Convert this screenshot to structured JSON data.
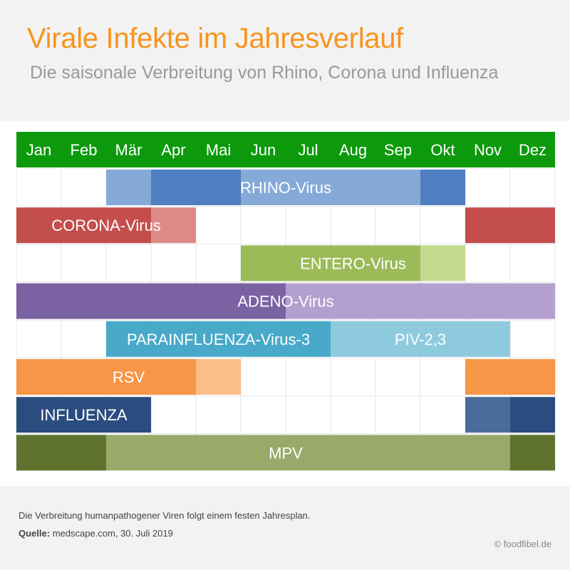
{
  "title": "Virale Infekte im Jahresverlauf",
  "subtitle": "Die saisonale Verbreitung von Rhino, Corona und Influenza",
  "footer": {
    "description": "Die Verbreitung humanpathogener Viren folgt einem festen Jahresplan.",
    "source_label": "Quelle:",
    "source_value": "medscape.com, 30. Juli 2019",
    "copyright": "© foodfibel.de"
  },
  "chart_data": {
    "type": "table",
    "header_color": "#0c9a0c",
    "months": [
      "Jan",
      "Feb",
      "Mär",
      "Apr",
      "Mai",
      "Jun",
      "Jul",
      "Aug",
      "Sep",
      "Okt",
      "Nov",
      "Dez"
    ],
    "rows": [
      {
        "label": "RHINO-Virus",
        "label_color": "#ffffff",
        "segments": [
          {
            "start": 3,
            "end": 3,
            "color": "#86aad7"
          },
          {
            "start": 4,
            "end": 5,
            "color": "#4f7fc1"
          },
          {
            "start": 6,
            "end": 9,
            "color": "#86aad7"
          },
          {
            "start": 10,
            "end": 10,
            "color": "#4f7fc1"
          }
        ]
      },
      {
        "label": "CORONA-Virus",
        "label_color": "#ffffff",
        "segments": [
          {
            "start": 1,
            "end": 3,
            "color": "#c34e4c"
          },
          {
            "start": 4,
            "end": 4,
            "color": "#de8a88"
          },
          {
            "start": 11,
            "end": 12,
            "color": "#c34e4c"
          }
        ]
      },
      {
        "label": "ENTERO-Virus",
        "label_color": "#ffffff",
        "segments": [
          {
            "start": 6,
            "end": 9,
            "color": "#9bbb59"
          },
          {
            "start": 10,
            "end": 10,
            "color": "#c4db8f"
          }
        ]
      },
      {
        "label": "ADENO-Virus",
        "label_color": "#ffffff",
        "segments": [
          {
            "start": 1,
            "end": 6,
            "color": "#7b62a3"
          },
          {
            "start": 7,
            "end": 12,
            "color": "#b4a0cf"
          }
        ]
      },
      {
        "label": "PARAINFLUENZA-Virus-3",
        "label_color": "#ffffff",
        "secondary_label": "PIV-2,3",
        "segments": [
          {
            "start": 3,
            "end": 7,
            "color": "#48a9c8"
          },
          {
            "start": 8,
            "end": 11,
            "color": "#8ecadd"
          }
        ]
      },
      {
        "label": "RSV",
        "label_color": "#ffffff",
        "segments": [
          {
            "start": 1,
            "end": 4,
            "color": "#f79646"
          },
          {
            "start": 5,
            "end": 5,
            "color": "#fbbd89"
          },
          {
            "start": 11,
            "end": 12,
            "color": "#f79646"
          }
        ]
      },
      {
        "label": "INFLUENZA",
        "label_color": "#ffffff",
        "segments": [
          {
            "start": 1,
            "end": 3,
            "color": "#2b4c7e"
          },
          {
            "start": 11,
            "end": 11,
            "color": "#4a6c9b"
          },
          {
            "start": 12,
            "end": 12,
            "color": "#2b4c7e"
          }
        ]
      },
      {
        "label": "MPV",
        "label_color": "#ffffff",
        "segments": [
          {
            "start": 1,
            "end": 2,
            "color": "#5f732f"
          },
          {
            "start": 3,
            "end": 11,
            "color": "#98a96a"
          },
          {
            "start": 12,
            "end": 12,
            "color": "#5f732f"
          }
        ]
      }
    ]
  }
}
